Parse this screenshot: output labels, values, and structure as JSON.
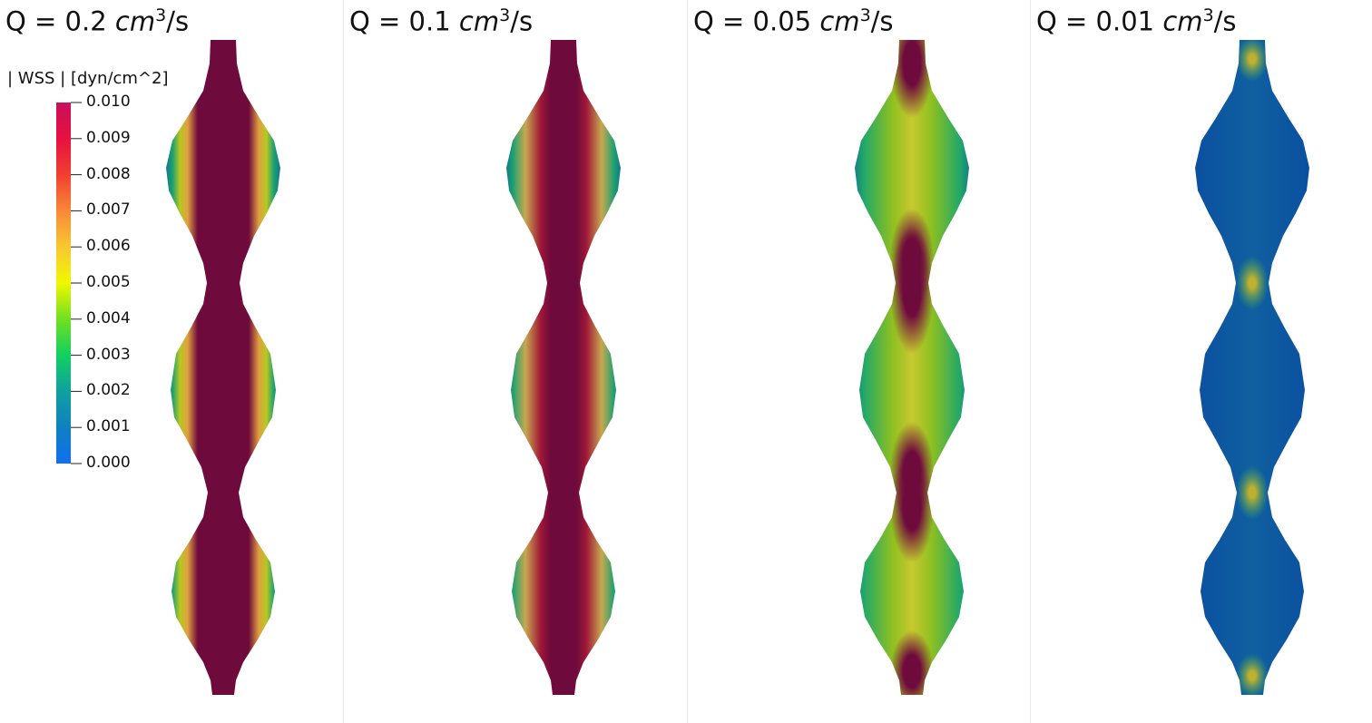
{
  "panels": [
    {
      "q_label": "Q = 0.2",
      "unit": "cm",
      "exponent": "3",
      "unit_suffix": "/s"
    },
    {
      "q_label": "Q = 0.1",
      "unit": "cm",
      "exponent": "3",
      "unit_suffix": "/s"
    },
    {
      "q_label": "Q = 0.05",
      "unit": "cm",
      "exponent": "3",
      "unit_suffix": "/s"
    },
    {
      "q_label": "Q = 0.01",
      "unit": "cm",
      "exponent": "3",
      "unit_suffix": "/s"
    }
  ],
  "colorbar": {
    "title": "| WSS | [dyn/cm^2]",
    "ticks": [
      "0.010",
      "0.009",
      "0.008",
      "0.007",
      "0.006",
      "0.005",
      "0.004",
      "0.003",
      "0.002",
      "0.001",
      "0.000"
    ]
  }
}
